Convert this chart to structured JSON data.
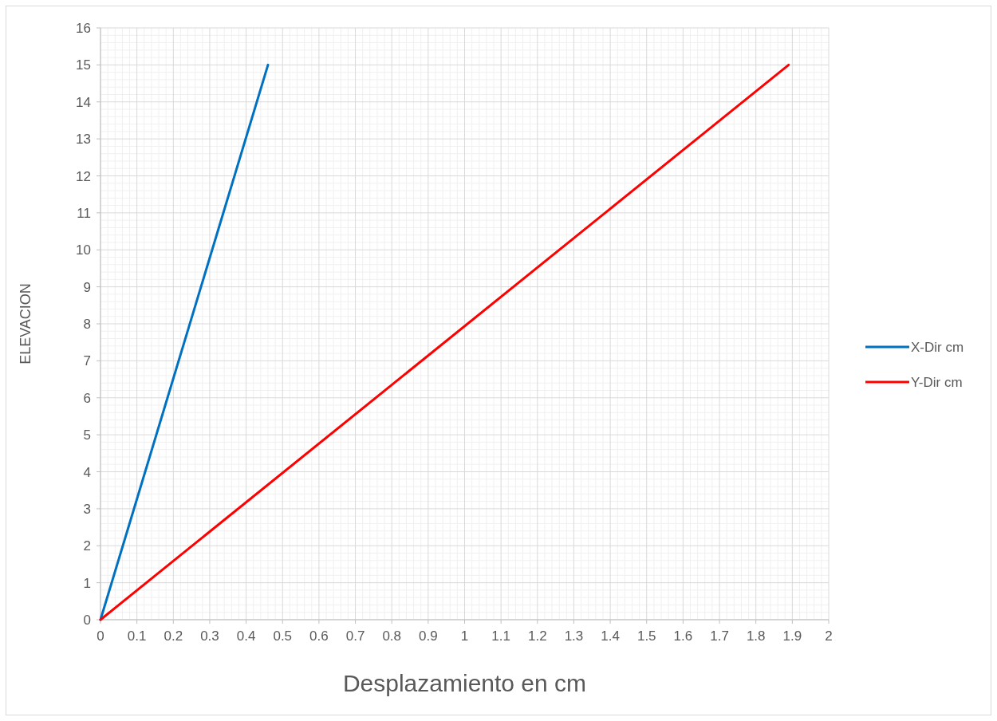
{
  "chart_data": {
    "type": "line",
    "xlabel": "Desplazamiento en cm",
    "ylabel": "ELEVACION",
    "xlim": [
      0,
      2
    ],
    "xticks": [
      0,
      0.1,
      0.2,
      0.3,
      0.4,
      0.5,
      0.6,
      0.7,
      0.8,
      0.9,
      1,
      1.1,
      1.2,
      1.3,
      1.4,
      1.5,
      1.6,
      1.7,
      1.8,
      1.9,
      2
    ],
    "ylim": [
      0,
      16
    ],
    "yticks": [
      0,
      1,
      2,
      3,
      4,
      5,
      6,
      7,
      8,
      9,
      10,
      11,
      12,
      13,
      14,
      15,
      16
    ],
    "grid": true,
    "legend": "right",
    "marker": "none",
    "line_style": "solid",
    "series": [
      {
        "name": "X-Dir cm",
        "color": "#0070c0",
        "x": [
          0,
          0.46
        ],
        "values": [
          0,
          15
        ]
      },
      {
        "name": "Y-Dir cm",
        "color": "#ff0000",
        "x": [
          0,
          1.89
        ],
        "values": [
          0,
          15
        ]
      }
    ]
  }
}
